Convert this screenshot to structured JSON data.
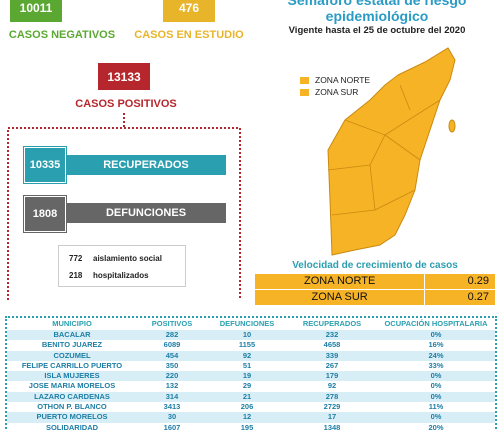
{
  "summary": {
    "negativos": {
      "value": "10011",
      "label": "CASOS NEGATIVOS"
    },
    "estudio": {
      "value": "476",
      "label": "CASOS EN ESTUDIO"
    },
    "positivos": {
      "value": "13133",
      "label": "CASOS POSITIVOS"
    },
    "recuperados": {
      "value": "10335",
      "label": "RECUPERADOS"
    },
    "defunciones": {
      "value": "1808",
      "label": "DEFUNCIONES"
    },
    "aislamiento": {
      "value": "772",
      "label": "aislamiento social"
    },
    "hospitalizados": {
      "value": "218",
      "label": "hospitalizados"
    }
  },
  "map": {
    "title": "Semáforo estatal de riesgo",
    "title2": "epidemiológico",
    "subtitle": "Vigente hasta el 25 de octubre del 2020",
    "legend": [
      "ZONA NORTE",
      "ZONA SUR"
    ]
  },
  "velocidad": {
    "title": "Velocidad de crecimiento de casos",
    "rows": [
      [
        "ZONA NORTE",
        "0.29"
      ],
      [
        "ZONA SUR",
        "0.27"
      ]
    ]
  },
  "table": {
    "header": [
      "MUNICIPIO",
      "POSITIVOS",
      "DEFUNCIONES",
      "RECUPERADOS",
      "OCUPACIÓN HOSPITALARIA"
    ],
    "rows": [
      [
        "BACALAR",
        "282",
        "10",
        "232",
        "0%"
      ],
      [
        "BENITO JUAREZ",
        "6089",
        "1155",
        "4658",
        "16%"
      ],
      [
        "COZUMEL",
        "454",
        "92",
        "339",
        "24%"
      ],
      [
        "FELIPE CARRILLO PUERTO",
        "350",
        "51",
        "267",
        "33%"
      ],
      [
        "ISLA MUJERES",
        "220",
        "19",
        "179",
        "0%"
      ],
      [
        "JOSE MARIA MORELOS",
        "132",
        "29",
        "92",
        "0%"
      ],
      [
        "LAZARO CARDENAS",
        "314",
        "21",
        "278",
        "0%"
      ],
      [
        "OTHON P. BLANCO",
        "3413",
        "206",
        "2729",
        "11%"
      ],
      [
        "PUERTO MORELOS",
        "30",
        "12",
        "17",
        "0%"
      ],
      [
        "SOLIDARIDAD",
        "1607",
        "195",
        "1348",
        "20%"
      ]
    ]
  }
}
